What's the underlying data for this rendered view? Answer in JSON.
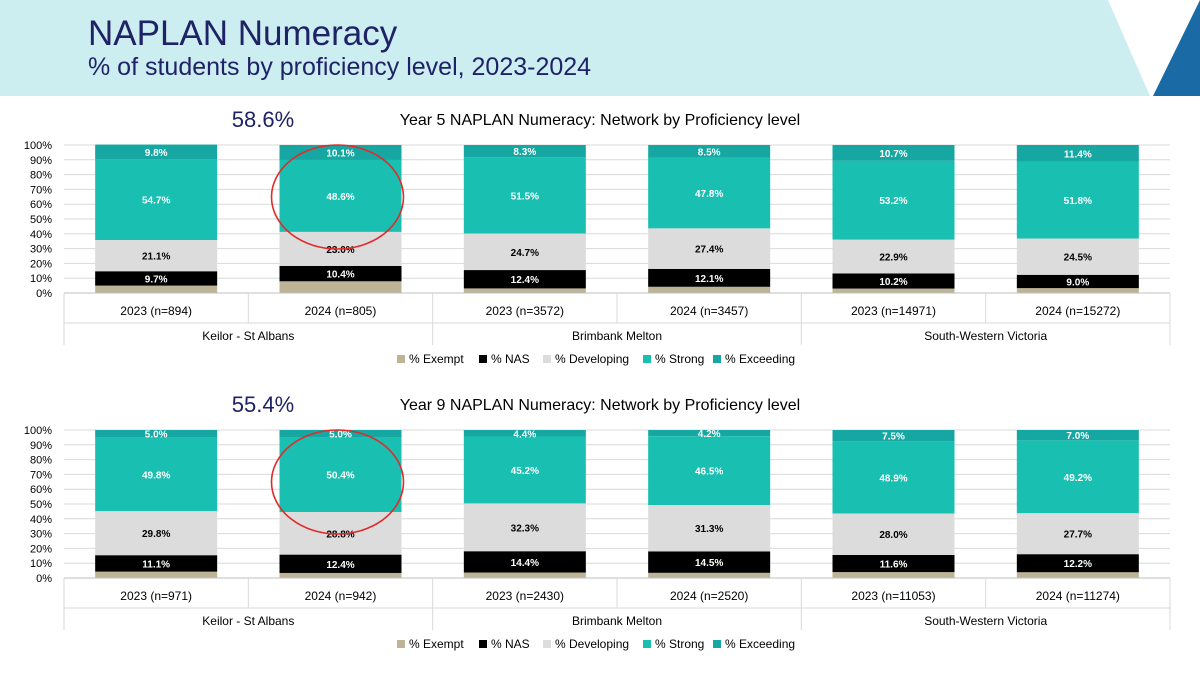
{
  "header": {
    "title": "NAPLAN Numeracy",
    "subtitle": "% of students by proficiency level, 2023-2024",
    "background_color": "#cdeef1",
    "accent_colors": [
      "#1a6aa6",
      "#bfe4ee"
    ]
  },
  "annotation_color": "#e02b2b",
  "chart_data": [
    {
      "type": "bar",
      "stacked": true,
      "title": "Year 5 NAPLAN Numeracy: Network by Proficiency level",
      "highlight_value": "58.6%",
      "yticks": [
        "0%",
        "10%",
        "20%",
        "30%",
        "40%",
        "50%",
        "60%",
        "70%",
        "80%",
        "90%",
        "100%"
      ],
      "ylim": [
        0,
        100
      ],
      "grid": true,
      "legend_position": "bottom",
      "categories": [
        "2023 (n=894)",
        "2024 (n=805)",
        "2023 (n=3572)",
        "2024 (n=3457)",
        "2023 (n=14971)",
        "2024 (n=15272)"
      ],
      "groups": [
        "Keilor - St Albans",
        "Brimbank Melton",
        "South-Western Victoria"
      ],
      "circled_category_index": 1,
      "series": [
        {
          "name": "% Exempt",
          "color": "#bdb496",
          "values": [
            5.0,
            7.9,
            3.1,
            4.2,
            3.0,
            3.3
          ],
          "labels": [
            "",
            "",
            "",
            "",
            "",
            ""
          ]
        },
        {
          "name": "% NAS",
          "color": "#000000",
          "values": [
            9.7,
            10.4,
            12.4,
            12.1,
            10.2,
            9.0
          ],
          "labels": [
            "9.7%",
            "10.4%",
            "12.4%",
            "12.1%",
            "10.2%",
            "9.0%"
          ]
        },
        {
          "name": "% Developing",
          "color": "#dcdcdc",
          "values": [
            21.1,
            23.0,
            24.7,
            27.4,
            22.9,
            24.5
          ],
          "labels": [
            "21.1%",
            "23.0%",
            "24.7%",
            "27.4%",
            "22.9%",
            "24.5%"
          ]
        },
        {
          "name": "% Strong",
          "color": "#19bfb0",
          "values": [
            54.7,
            48.6,
            51.5,
            47.8,
            53.2,
            51.8
          ],
          "labels": [
            "54.7%",
            "48.6%",
            "51.5%",
            "47.8%",
            "53.2%",
            "51.8%"
          ]
        },
        {
          "name": "% Exceeding",
          "color": "#16a7a2",
          "values": [
            9.8,
            10.1,
            8.3,
            8.5,
            10.7,
            11.4
          ],
          "labels": [
            "9.8%",
            "10.1%",
            "8.3%",
            "8.5%",
            "10.7%",
            "11.4%"
          ]
        }
      ]
    },
    {
      "type": "bar",
      "stacked": true,
      "title": "Year 9 NAPLAN Numeracy: Network by Proficiency level",
      "highlight_value": "55.4%",
      "yticks": [
        "0%",
        "10%",
        "20%",
        "30%",
        "40%",
        "50%",
        "60%",
        "70%",
        "80%",
        "90%",
        "100%"
      ],
      "ylim": [
        0,
        100
      ],
      "grid": true,
      "legend_position": "bottom",
      "categories": [
        "2023 (n=971)",
        "2024 (n=942)",
        "2023 (n=2430)",
        "2024 (n=2520)",
        "2023 (n=11053)",
        "2024 (n=11274)"
      ],
      "groups": [
        "Keilor - St Albans",
        "Brimbank Melton",
        "South-Western Victoria"
      ],
      "circled_category_index": 1,
      "series": [
        {
          "name": "% Exempt",
          "color": "#bdb496",
          "values": [
            4.3,
            3.4,
            3.7,
            3.5,
            4.0,
            3.9
          ],
          "labels": [
            "",
            "",
            "",
            "",
            "",
            ""
          ]
        },
        {
          "name": "% NAS",
          "color": "#000000",
          "values": [
            11.1,
            12.4,
            14.4,
            14.5,
            11.6,
            12.2
          ],
          "labels": [
            "11.1%",
            "12.4%",
            "14.4%",
            "14.5%",
            "11.6%",
            "12.2%"
          ]
        },
        {
          "name": "% Developing",
          "color": "#dcdcdc",
          "values": [
            29.8,
            28.8,
            32.3,
            31.3,
            28.0,
            27.7
          ],
          "labels": [
            "29.8%",
            "28.8%",
            "32.3%",
            "31.3%",
            "28.0%",
            "27.7%"
          ]
        },
        {
          "name": "% Strong",
          "color": "#19bfb0",
          "values": [
            49.8,
            50.4,
            45.2,
            46.5,
            48.9,
            49.2
          ],
          "labels": [
            "49.8%",
            "50.4%",
            "45.2%",
            "46.5%",
            "48.9%",
            "49.2%"
          ]
        },
        {
          "name": "% Exceeding",
          "color": "#16a7a2",
          "values": [
            5.0,
            5.0,
            4.4,
            4.2,
            7.5,
            7.0
          ],
          "labels": [
            "5.0%",
            "5.0%",
            "4.4%",
            "4.2%",
            "7.5%",
            "7.0%"
          ]
        }
      ]
    }
  ]
}
